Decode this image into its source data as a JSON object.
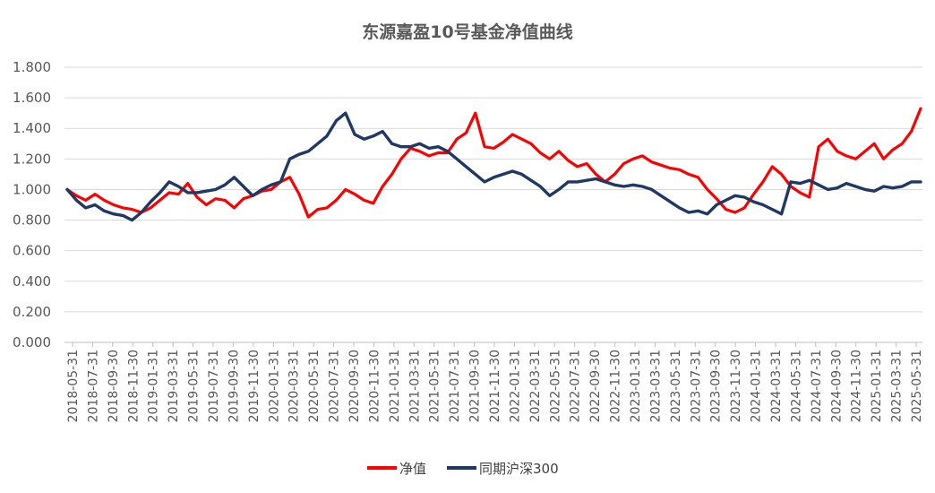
{
  "chart_data": {
    "type": "line",
    "title": "东源嘉盈10号基金净值曲线",
    "xlabel": "",
    "ylabel": "",
    "ylim": [
      0.0,
      1.8
    ],
    "yticks": [
      "0.000",
      "0.200",
      "0.400",
      "0.600",
      "0.800",
      "1.000",
      "1.200",
      "1.400",
      "1.600",
      "1.800"
    ],
    "x_tick_labels": [
      "2018-05-31",
      "2018-07-31",
      "2018-09-30",
      "2018-11-30",
      "2019-01-31",
      "2019-03-31",
      "2019-05-31",
      "2019-07-31",
      "2019-09-30",
      "2019-11-30",
      "2020-01-31",
      "2020-03-31",
      "2020-05-31",
      "2020-07-31",
      "2020-09-30",
      "2020-11-30",
      "2021-01-31",
      "2021-03-31",
      "2021-05-31",
      "2021-07-31",
      "2021-09-30",
      "2021-11-30",
      "2022-01-31",
      "2022-03-31",
      "2022-05-31",
      "2022-07-31",
      "2022-09-30",
      "2022-11-30",
      "2023-01-31",
      "2023-03-31",
      "2023-05-31",
      "2023-07-31",
      "2023-09-30",
      "2023-11-30",
      "2024-01-31",
      "2024-03-31",
      "2024-05-31",
      "2024-07-31",
      "2024-09-30",
      "2024-11-30",
      "2025-01-31",
      "2025-03-31",
      "2025-05-31"
    ],
    "grid": true,
    "legend_position": "bottom",
    "series": [
      {
        "name": "净值",
        "color": "#ff0000",
        "values": [
          1.0,
          0.96,
          0.93,
          0.97,
          0.93,
          0.9,
          0.88,
          0.87,
          0.85,
          0.88,
          0.93,
          0.98,
          0.97,
          1.04,
          0.95,
          0.9,
          0.94,
          0.93,
          0.88,
          0.94,
          0.96,
          0.99,
          1.0,
          1.05,
          1.08,
          0.97,
          0.82,
          0.87,
          0.88,
          0.93,
          1.0,
          0.97,
          0.93,
          0.91,
          1.02,
          1.1,
          1.2,
          1.27,
          1.25,
          1.22,
          1.24,
          1.24,
          1.33,
          1.37,
          1.5,
          1.28,
          1.27,
          1.31,
          1.36,
          1.33,
          1.3,
          1.24,
          1.2,
          1.25,
          1.19,
          1.15,
          1.17,
          1.1,
          1.05,
          1.1,
          1.17,
          1.2,
          1.22,
          1.18,
          1.16,
          1.14,
          1.13,
          1.1,
          1.08,
          1.0,
          0.94,
          0.87,
          0.85,
          0.88,
          0.97,
          1.05,
          1.15,
          1.1,
          1.02,
          0.98,
          0.95,
          1.28,
          1.33,
          1.25,
          1.22,
          1.2,
          1.25,
          1.3,
          1.2,
          1.26,
          1.3,
          1.38,
          1.53
        ]
      },
      {
        "name": "同期沪深300",
        "color": "#1f3864",
        "values": [
          1.0,
          0.93,
          0.88,
          0.9,
          0.86,
          0.84,
          0.83,
          0.8,
          0.85,
          0.92,
          0.98,
          1.05,
          1.02,
          0.98,
          0.98,
          0.99,
          1.0,
          1.03,
          1.08,
          1.02,
          0.96,
          1.0,
          1.03,
          1.05,
          1.2,
          1.23,
          1.25,
          1.3,
          1.35,
          1.45,
          1.5,
          1.36,
          1.33,
          1.35,
          1.38,
          1.3,
          1.28,
          1.28,
          1.3,
          1.27,
          1.28,
          1.25,
          1.2,
          1.15,
          1.1,
          1.05,
          1.08,
          1.1,
          1.12,
          1.1,
          1.06,
          1.02,
          0.96,
          1.0,
          1.05,
          1.05,
          1.06,
          1.07,
          1.05,
          1.03,
          1.02,
          1.03,
          1.02,
          1.0,
          0.96,
          0.92,
          0.88,
          0.85,
          0.86,
          0.84,
          0.9,
          0.93,
          0.96,
          0.95,
          0.92,
          0.9,
          0.87,
          0.84,
          1.05,
          1.04,
          1.06,
          1.03,
          1.0,
          1.01,
          1.04,
          1.02,
          1.0,
          0.99,
          1.02,
          1.01,
          1.02,
          1.05,
          1.05
        ]
      }
    ]
  }
}
